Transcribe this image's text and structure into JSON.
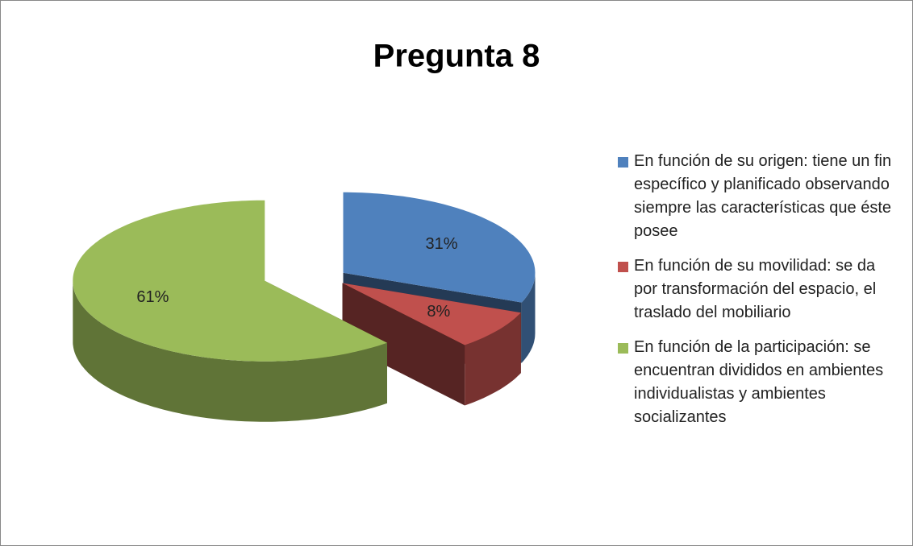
{
  "chart_data": {
    "type": "pie3d",
    "title": "Pregunta 8",
    "categories": [
      "En función de su origen: tiene un fin específico y planificado observando siempre las características que éste posee",
      "En función de su movilidad: se da por transformación del espacio, el traslado del mobiliario",
      "En función de la participación: se encuentran divididos en ambientes individualistas y ambientes socializantes"
    ],
    "values": [
      31,
      8,
      61
    ],
    "value_labels": [
      "31%",
      "8%",
      "61%"
    ],
    "colors": [
      "#4f81bd",
      "#c0504d",
      "#9bbb59"
    ],
    "legend": "right"
  }
}
